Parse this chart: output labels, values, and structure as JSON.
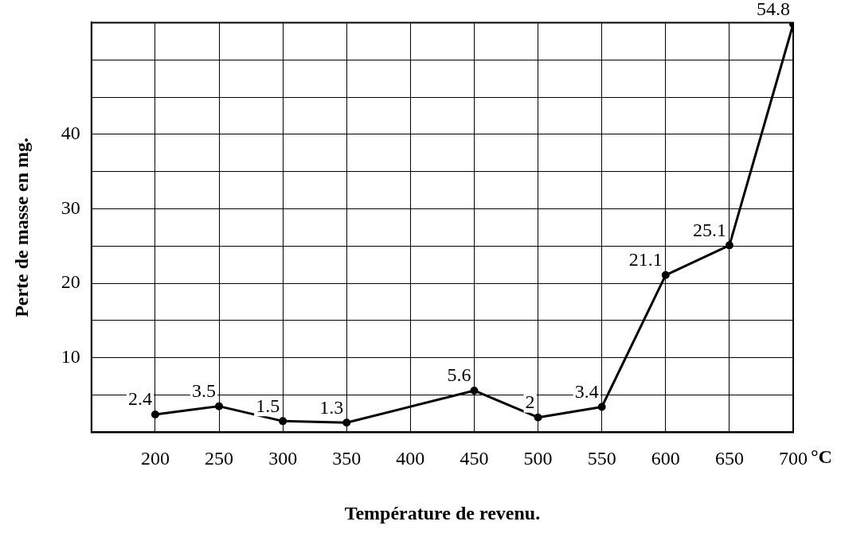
{
  "chart_data": {
    "type": "line",
    "xlabel": "Température de revenu.",
    "ylabel": "Perte de masse en mg.",
    "x": [
      200,
      250,
      300,
      350,
      450,
      500,
      550,
      600,
      650,
      700
    ],
    "values": [
      2.4,
      3.5,
      1.5,
      1.3,
      5.6,
      2,
      3.4,
      21.1,
      25.1,
      54.8
    ],
    "color": "#000000",
    "marker": "circle",
    "line_style": "solid",
    "data_labels": true,
    "grid": true,
    "legend": false,
    "xlim": [
      150,
      700
    ],
    "xticks": [
      {
        "value": 150,
        "label": null
      },
      200,
      250,
      300,
      350,
      400,
      450,
      500,
      550,
      600,
      650,
      700
    ],
    "ylim": [
      0,
      55
    ],
    "yticks": [
      {
        "value": 0,
        "label": null
      },
      {
        "value": 5,
        "label": null
      },
      10,
      {
        "value": 15,
        "label": null
      },
      20,
      {
        "value": 25,
        "label": null
      },
      30,
      {
        "value": 35,
        "label": null
      },
      40,
      {
        "value": 45,
        "label": null
      },
      {
        "value": 50,
        "label": null
      },
      {
        "value": 55,
        "label": null
      }
    ],
    "annotations": [
      "°C"
    ]
  }
}
